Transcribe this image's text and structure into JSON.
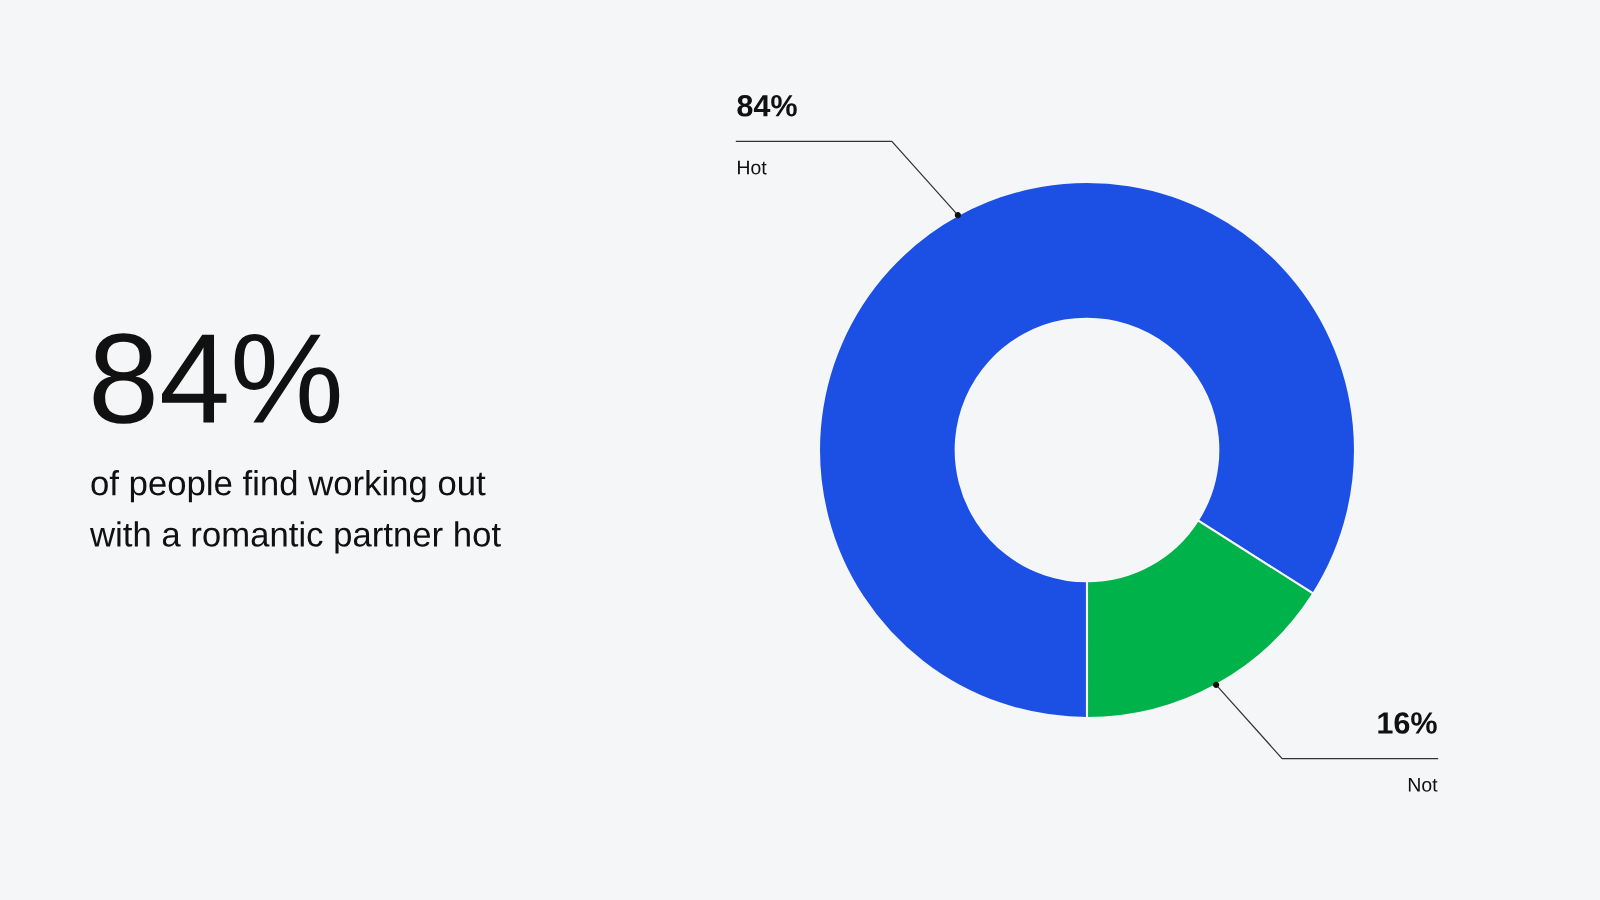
{
  "chart_data": {
    "type": "donut",
    "title": "84%",
    "subtitle": "of people find working out with a romantic partner hot",
    "categories": [
      "Hot",
      "Not"
    ],
    "values": [
      84,
      16
    ],
    "colors": [
      "#1c4fe4",
      "#00b24a"
    ],
    "value_labels": [
      "84%",
      "16%"
    ],
    "legend": false
  }
}
